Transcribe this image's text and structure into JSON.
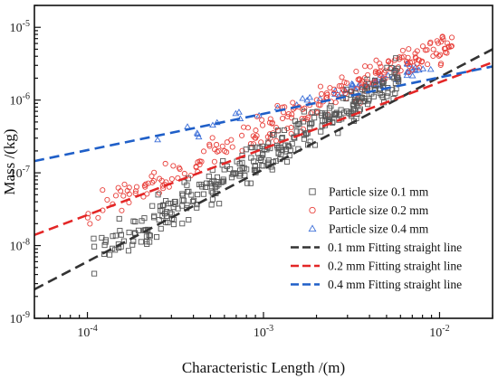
{
  "chart_data": {
    "type": "scatter",
    "title": "",
    "xlabel": "Characteristic Length /(m)",
    "ylabel": "Mass /(kg)",
    "x_scale": "log",
    "y_scale": "log",
    "xlim": [
      5e-05,
      0.02
    ],
    "ylim": [
      1e-09,
      2e-05
    ],
    "x_ticks": [
      {
        "value": 0.0001,
        "base": "10",
        "exp": "-4"
      },
      {
        "value": 0.001,
        "base": "10",
        "exp": "-3"
      },
      {
        "value": 0.01,
        "base": "10",
        "exp": "-2"
      }
    ],
    "y_ticks": [
      {
        "value": 1e-09,
        "base": "10",
        "exp": "-9"
      },
      {
        "value": 1e-08,
        "base": "10",
        "exp": "-8"
      },
      {
        "value": 1e-07,
        "base": "10",
        "exp": "-7"
      },
      {
        "value": 1e-06,
        "base": "10",
        "exp": "-6"
      },
      {
        "value": 1e-05,
        "base": "10",
        "exp": "-5"
      }
    ],
    "grid": false,
    "legend_position": "bottom-right",
    "series": [
      {
        "name": "Particle size  0.1 mm",
        "kind": "points",
        "marker": "square",
        "color": "#555555",
        "x_range": [
          0.0001,
          0.006
        ],
        "fit": {
          "slope": 1.42,
          "intercept": -2.52
        },
        "count": 340,
        "spread": 0.22
      },
      {
        "name": "Particle size  0.2 mm",
        "kind": "points",
        "marker": "circle",
        "color": "#e8413c",
        "x_range": [
          0.0001,
          0.012
        ],
        "fit": {
          "slope": 1.12,
          "intercept": -3.05
        },
        "count": 250,
        "spread": 0.17
      },
      {
        "name": "Particle size  0.4 mm",
        "kind": "points",
        "marker": "triangle",
        "color": "#3d6fd8",
        "x_range": [
          0.00025,
          0.009
        ],
        "fit": {
          "slope": 0.65,
          "intercept": -4.2
        },
        "count": 55,
        "spread": 0.08
      },
      {
        "name": "0.1 mm  Fitting straight line",
        "kind": "line",
        "color": "#333333",
        "x": [
          5e-05,
          0.02
        ],
        "y": [
          2.5e-09,
          5e-06
        ]
      },
      {
        "name": "0.2 mm  Fitting straight line",
        "kind": "line",
        "color": "#e32626",
        "x": [
          5e-05,
          0.02
        ],
        "y": [
          1.4e-08,
          3.3e-06
        ]
      },
      {
        "name": "0.4 mm  Fitting straight line",
        "kind": "line",
        "color": "#1f5fc8",
        "x": [
          5e-05,
          0.02
        ],
        "y": [
          1.45e-07,
          2.9e-06
        ]
      }
    ]
  }
}
